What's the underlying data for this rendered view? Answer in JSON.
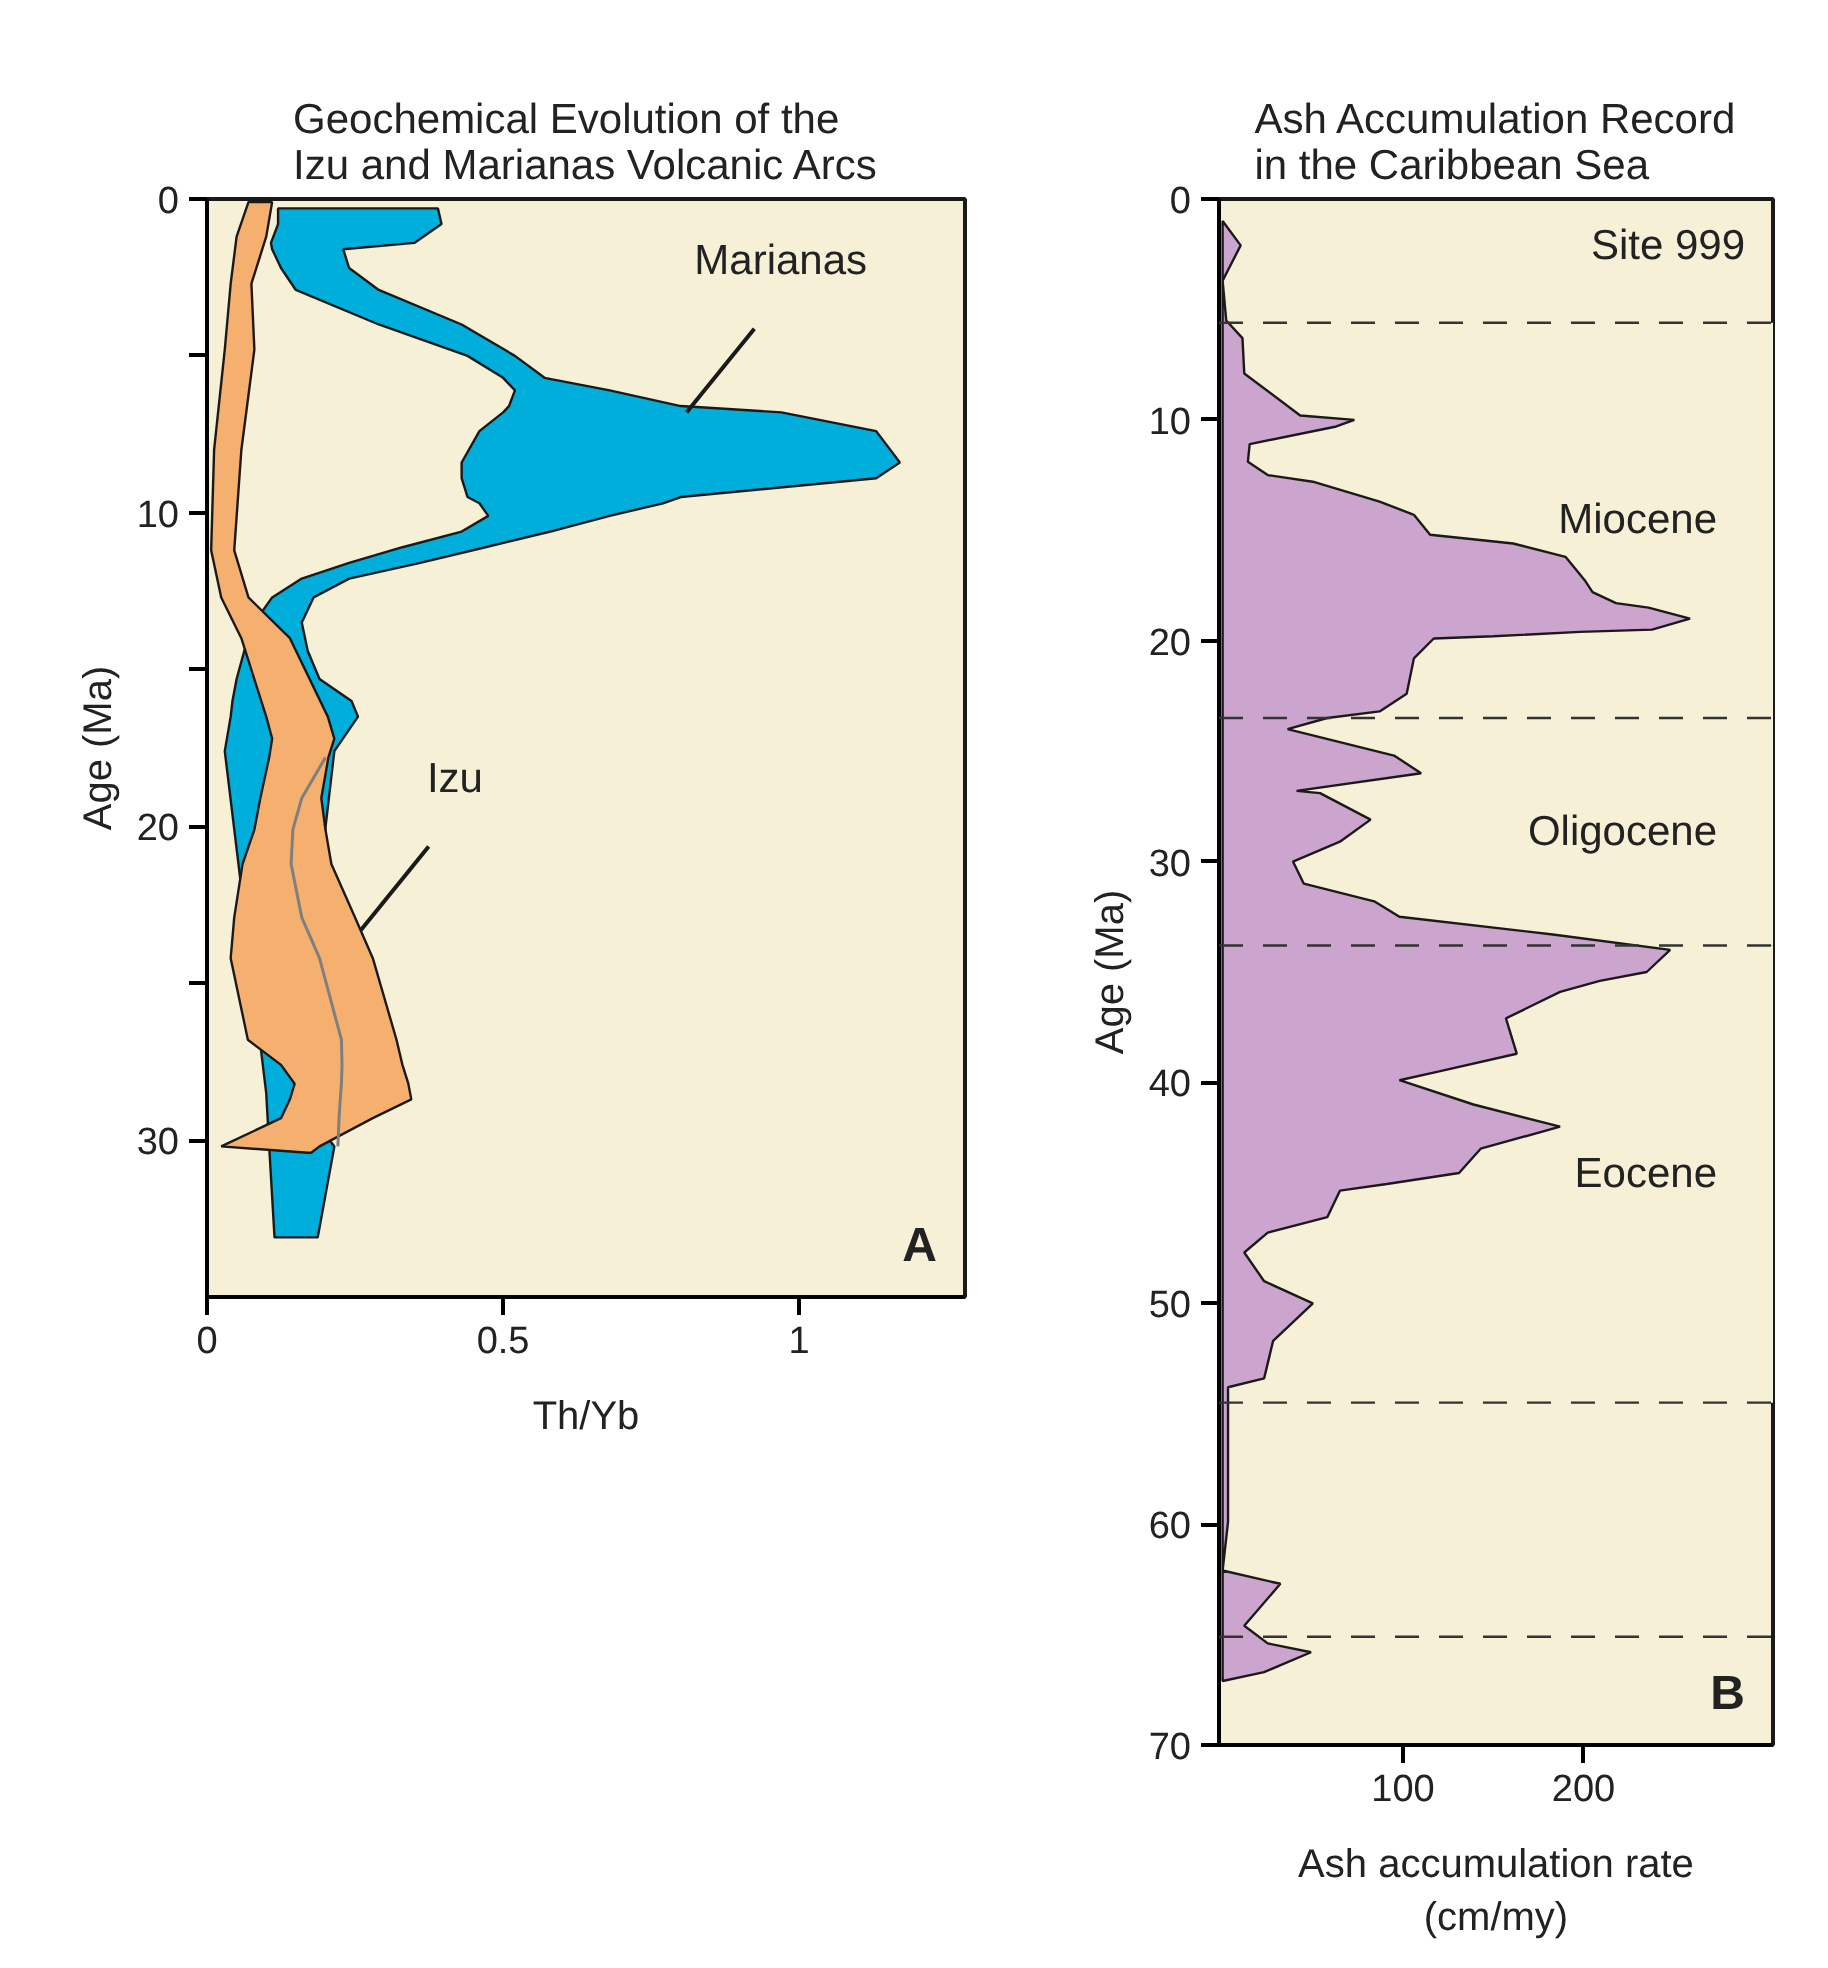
{
  "chart_data": [
    {
      "type": "line",
      "orientation": "horizontal",
      "title": "Geochemical Evolution of the\nIzu and Marianas Volcanic Arcs",
      "xlabel": "Th/Yb",
      "ylabel": "Age (Ma)",
      "xlim": [
        0,
        1.28
      ],
      "xticks": [
        0,
        0.5,
        1
      ],
      "ylim": [
        35,
        0
      ],
      "yticks": [
        0,
        {
          "value": 5,
          "label": null
        },
        10,
        {
          "value": 15,
          "label": null
        },
        20,
        {
          "value": 25,
          "label": null
        },
        30
      ],
      "series": [
        {
          "color": "#00aedb",
          "x": [
            0.3,
            0.8,
            1.4,
            1.6,
            2.2,
            2.9,
            4.0,
            5.0,
            5.7,
            6.1,
            6.6,
            6.8,
            7.4,
            8.4,
            8.9,
            9.5,
            9.7,
            10.1,
            10.6,
            11.1,
            11.6,
            12.1,
            12.7,
            13.5,
            14.4,
            15.3,
            16.0,
            16.5,
            17.6,
            19.7,
            23.3,
            25.9,
            27.6,
            28.5,
            29.7,
            30.2,
            33.1
          ],
          "values": [
            null,
            null,
            null,
            null,
            null,
            null,
            null,
            null,
            null,
            null,
            null,
            null,
            null,
            null,
            null,
            null,
            null,
            null,
            null,
            null,
            null,
            null,
            null,
            null,
            null,
            null,
            null,
            null,
            null,
            null,
            null,
            null,
            null,
            null,
            null,
            null,
            null
          ],
          "lower": [
            0.12,
            0.12,
            0.108,
            0.11,
            0.125,
            0.15,
            0.29,
            0.44,
            0.5,
            0.52,
            0.51,
            0.5,
            0.46,
            0.43,
            0.43,
            0.44,
            0.46,
            0.475,
            0.43,
            0.33,
            0.24,
            0.16,
            0.11,
            0.08,
            0.063,
            0.05,
            0.043,
            0.04,
            0.03,
            null,
            null,
            null,
            null,
            0.1,
            null,
            0.105,
            0.114
          ],
          "upper": [
            0.39,
            0.396,
            0.35,
            0.23,
            0.24,
            0.29,
            0.43,
            0.52,
            0.57,
            0.68,
            0.8,
            0.97,
            1.13,
            1.17,
            1.13,
            0.8,
            0.77,
            0.68,
            0.58,
            0.47,
            0.36,
            0.24,
            0.18,
            0.16,
            0.17,
            0.19,
            0.244,
            0.255,
            0.215,
            null,
            null,
            null,
            null,
            0.148,
            null,
            0.215,
            0.187
          ]
        },
        {
          "color": "#f5b070",
          "x": [
            0.1,
            1.2,
            2.7,
            4.8,
            8.0,
            11.2,
            12.7,
            14.0,
            16.5,
            17.2,
            17.8,
            19.1,
            20.1,
            21.2,
            22.9,
            24.2,
            26.8,
            27.6,
            28.2,
            28.7,
            29.3,
            30.2,
            30.4
          ],
          "values": [
            null,
            null,
            null,
            null,
            null,
            null,
            null,
            null,
            null,
            null,
            null,
            null,
            null,
            null,
            null,
            null,
            null,
            null,
            null,
            null,
            null,
            null,
            null
          ],
          "lower": [
            0.07,
            0.05,
            0.04,
            0.03,
            0.012,
            0.007,
            0.024,
            0.058,
            0.1,
            0.11,
            0.105,
            0.09,
            0.08,
            0.06,
            0.046,
            0.04,
            0.069,
            0.125,
            0.148,
            0.14,
            0.125,
            0.024,
            0.17
          ],
          "upper": [
            0.11,
            0.1,
            0.075,
            0.08,
            0.058,
            0.046,
            0.07,
            0.14,
            0.204,
            0.215,
            0.205,
            0.193,
            0.2,
            0.21,
            0.25,
            0.28,
            0.32,
            0.33,
            0.34,
            0.345,
            0.28,
            0.19,
            0.176
          ]
        },
        {
          "color": "#7f7f7f",
          "x": [
            17.8,
            19.1,
            20.1,
            21.2,
            22.9,
            24.2,
            26.8,
            27.6,
            28.2,
            28.7,
            29.3,
            30.2
          ],
          "values": [
            0.2,
            0.16,
            0.145,
            0.142,
            0.16,
            0.19,
            0.227,
            0.228,
            0.227,
            0.225,
            0.223,
            0.221
          ]
        }
      ],
      "annotations": [
        {
          "text": "Marianas",
          "x": 0.81,
          "y": 6.8
        },
        {
          "text": "Izu",
          "x": 0.26,
          "y": 23.3
        },
        "A"
      ]
    },
    {
      "type": "area",
      "orientation": "horizontal",
      "title": "Ash Accumulation Record\nin the Caribbean Sea",
      "xlabel": "Ash accumulation rate\n(cm/my)",
      "ylabel": "Age (Ma)",
      "xlim": [
        -2,
        305
      ],
      "xticks": [
        100,
        200
      ],
      "ylim": [
        70,
        0
      ],
      "yticks": [
        0,
        10,
        20,
        30,
        40,
        50,
        60,
        70
      ],
      "series": [
        {
          "color": "#cca5cf",
          "x": [
            1.0,
            2.1,
            3.7,
            5.5,
            6.3,
            7.9,
            9.8,
            10.0,
            10.3,
            11.1,
            11.9,
            12.5,
            12.8,
            13.7,
            14.3,
            15.2,
            15.6,
            16.2,
            17.3,
            17.8,
            18.3,
            18.5,
            19.0,
            19.5,
            19.6,
            19.8,
            19.9,
            20.8,
            22.4,
            23.2,
            23.5,
            24.0,
            25.2,
            26.0,
            26.8,
            26.9,
            28.1,
            29.1,
            30.0,
            31.0,
            31.8,
            32.5,
            33.3,
            34.0,
            35.0,
            35.4,
            35.9,
            37.1,
            38.7,
            39.5,
            39.9,
            41.0,
            42.0,
            43.0,
            44.1,
            44.6,
            44.9,
            46.1,
            46.8,
            47.7,
            49.0,
            50.0,
            51.7,
            53.4,
            53.8,
            59.9,
            62.1,
            62.7,
            64.6,
            65.4,
            65.8,
            66.7,
            67.1
          ],
          "values": [
            0,
            10,
            0,
            2,
            11,
            12,
            43,
            73,
            63,
            15,
            14,
            25,
            50,
            87,
            106,
            115,
            161,
            190,
            201,
            205,
            218,
            236,
            259,
            238,
            198,
            150,
            117,
            106,
            102,
            87,
            58,
            36,
            95,
            110,
            41,
            54,
            82,
            65,
            39,
            45,
            84,
            98,
            183,
            248,
            235,
            209,
            187,
            157,
            163,
            120,
            98,
            139,
            187,
            143,
            131,
            91,
            65,
            58,
            25,
            12,
            23,
            50,
            28,
            23,
            3,
            3,
            0,
            32,
            12,
            25,
            49,
            23,
            0
          ]
        }
      ],
      "ref_lines": [
        {
          "axis": "y",
          "value": 5.6,
          "line_style": "dashed"
        },
        {
          "axis": "y",
          "value": 23.5,
          "line_style": "dashed"
        },
        {
          "axis": "y",
          "value": 33.8,
          "line_style": "dashed"
        },
        {
          "axis": "y",
          "value": 54.5,
          "line_style": "dashed"
        },
        {
          "axis": "y",
          "value": 65.1,
          "line_style": "dashed"
        }
      ],
      "bands": [
        {
          "axis": "y",
          "from": 5.6,
          "to": 23.5,
          "label": "Miocene",
          "color": "#f6f0d6"
        },
        {
          "axis": "y",
          "from": 23.5,
          "to": 33.8,
          "label": "Oligocene",
          "color": "#f6f0d6"
        },
        {
          "axis": "y",
          "from": 33.8,
          "to": 54.5,
          "label": "Eocene",
          "color": "#f6f0d6"
        }
      ],
      "annotations": [
        "Site 999",
        "B"
      ]
    }
  ]
}
